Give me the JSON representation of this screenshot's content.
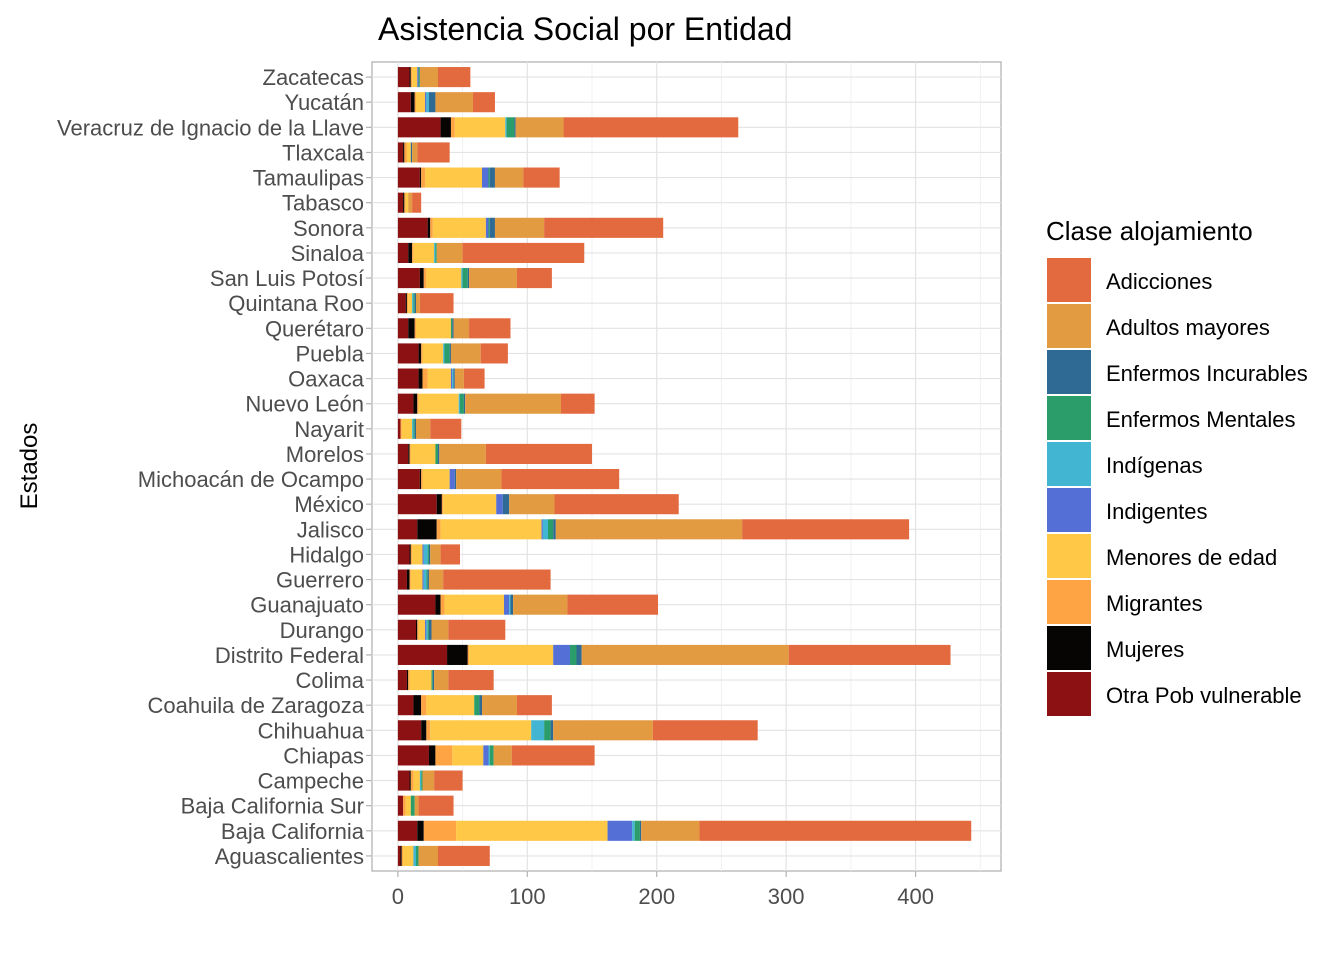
{
  "chart_data": {
    "type": "bar",
    "orientation": "horizontal",
    "stacked": true,
    "title": "Asistencia Social por Entidad",
    "ylabel": "Estados",
    "xlabel": "",
    "xlim": [
      -20,
      466
    ],
    "xticks": [
      0,
      100,
      200,
      300,
      400
    ],
    "grid": true,
    "legend_position": "right",
    "legend_title": "Clase alojamiento",
    "categories": [
      "Zacatecas",
      "Yucatán",
      "Veracruz de Ignacio de la Llave",
      "Tlaxcala",
      "Tamaulipas",
      "Tabasco",
      "Sonora",
      "Sinaloa",
      "San Luis Potosí",
      "Quintana Roo",
      "Querétaro",
      "Puebla",
      "Oaxaca",
      "Nuevo León",
      "Nayarit",
      "Morelos",
      "Michoacán de Ocampo",
      "México",
      "Jalisco",
      "Hidalgo",
      "Guerrero",
      "Guanajuato",
      "Durango",
      "Distrito Federal",
      "Colima",
      "Coahuila de Zaragoza",
      "Chihuahua",
      "Chiapas",
      "Campeche",
      "Baja California Sur",
      "Baja California",
      "Aguascalientes"
    ],
    "series": [
      {
        "name": "Otra Pob vulnerable",
        "color": "#8B1112",
        "values": [
          9,
          10,
          33,
          4,
          17,
          4,
          23,
          8,
          17,
          6,
          8,
          16,
          16,
          12,
          2,
          8,
          17,
          30,
          15,
          9,
          7,
          29,
          14,
          38,
          7,
          12,
          18,
          24,
          9,
          4,
          15,
          2
        ]
      },
      {
        "name": "Mujeres",
        "color": "#070404",
        "values": [
          1,
          3,
          8,
          1,
          1,
          1,
          2,
          3,
          3,
          1,
          5,
          2,
          3,
          3,
          0,
          1,
          1,
          4,
          15,
          1,
          2,
          4,
          1,
          16,
          1,
          6,
          4,
          5,
          1,
          0,
          5,
          1
        ]
      },
      {
        "name": "Migrantes",
        "color": "#FFA445",
        "values": [
          1,
          1,
          3,
          2,
          3,
          1,
          2,
          1,
          2,
          1,
          1,
          1,
          4,
          1,
          1,
          1,
          1,
          1,
          3,
          1,
          1,
          3,
          1,
          1,
          1,
          4,
          3,
          13,
          2,
          2,
          25,
          1
        ]
      },
      {
        "name": "Menores de edad",
        "color": "#FFC846",
        "values": [
          4,
          7,
          39,
          3,
          44,
          2,
          41,
          16,
          27,
          3,
          27,
          16,
          18,
          31,
          8,
          19,
          21,
          41,
          78,
          8,
          9,
          46,
          5,
          65,
          17,
          37,
          78,
          24,
          5,
          4,
          117,
          8
        ]
      },
      {
        "name": "Indigentes",
        "color": "#5470D6",
        "values": [
          1,
          1,
          0,
          0,
          5,
          0,
          2,
          0,
          0,
          0,
          0,
          0,
          1,
          0,
          0,
          0,
          4,
          5,
          1,
          1,
          1,
          4,
          1,
          13,
          0,
          0,
          0,
          4,
          0,
          0,
          19,
          0
        ]
      },
      {
        "name": "Indígenas",
        "color": "#41B5D1",
        "values": [
          0,
          2,
          1,
          0,
          0,
          0,
          0,
          1,
          1,
          1,
          0,
          1,
          1,
          1,
          1,
          0,
          0,
          0,
          4,
          3,
          2,
          1,
          1,
          0,
          0,
          0,
          10,
          1,
          1,
          0,
          2,
          2
        ]
      },
      {
        "name": "Enfermos Mentales",
        "color": "#2A9D6B",
        "values": [
          1,
          0,
          6,
          0,
          1,
          0,
          1,
          1,
          4,
          1,
          1,
          4,
          0,
          3,
          1,
          2,
          0,
          0,
          4,
          1,
          1,
          0,
          1,
          5,
          1,
          4,
          5,
          3,
          1,
          3,
          4,
          2
        ]
      },
      {
        "name": "Enfermos Incurables",
        "color": "#2E6A93",
        "values": [
          0,
          5,
          1,
          1,
          4,
          0,
          4,
          0,
          1,
          1,
          1,
          1,
          1,
          1,
          1,
          1,
          1,
          5,
          2,
          1,
          1,
          2,
          2,
          4,
          1,
          2,
          2,
          0,
          0,
          0,
          1,
          0
        ]
      },
      {
        "name": "Adultos mayores",
        "color": "#E39B42",
        "values": [
          14,
          29,
          37,
          4,
          22,
          3,
          38,
          20,
          37,
          3,
          12,
          23,
          7,
          74,
          11,
          36,
          35,
          35,
          144,
          8,
          11,
          42,
          13,
          160,
          11,
          27,
          77,
          14,
          9,
          3,
          45,
          15
        ]
      },
      {
        "name": "Adicciones",
        "color": "#E36A3F",
        "values": [
          25,
          17,
          135,
          25,
          28,
          7,
          92,
          94,
          27,
          26,
          32,
          21,
          16,
          26,
          24,
          82,
          91,
          96,
          129,
          15,
          83,
          70,
          44,
          125,
          35,
          27,
          81,
          64,
          22,
          27,
          210,
          40
        ]
      }
    ]
  }
}
